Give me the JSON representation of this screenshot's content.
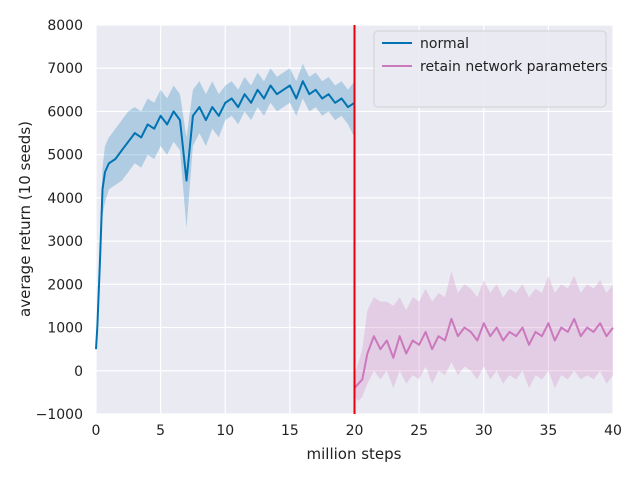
{
  "chart_data": {
    "type": "line",
    "xlabel": "million steps",
    "ylabel": "average return (10 seeds)",
    "xlim": [
      0,
      40
    ],
    "ylim": [
      -1000,
      8000
    ],
    "xticks": [
      "0",
      "5",
      "10",
      "15",
      "20",
      "25",
      "30",
      "35",
      "40"
    ],
    "yticks": [
      "−1000",
      "0",
      "1000",
      "2000",
      "3000",
      "4000",
      "5000",
      "6000",
      "7000",
      "8000"
    ],
    "grid": true,
    "legend": "top-right",
    "vline": {
      "x": 20,
      "color": "#e8000b"
    },
    "series": [
      {
        "name": "normal",
        "color": "#0173b2",
        "x": [
          0,
          0.1,
          0.3,
          0.5,
          0.7,
          1,
          1.5,
          2,
          2.5,
          3,
          3.5,
          4,
          4.5,
          5,
          5.5,
          6,
          6.5,
          7,
          7.5,
          8,
          8.5,
          9,
          9.5,
          10,
          10.5,
          11,
          11.5,
          12,
          12.5,
          13,
          13.5,
          14,
          14.5,
          15,
          15.5,
          16,
          16.5,
          17,
          17.5,
          18,
          18.5,
          19,
          19.5,
          20
        ],
        "y": [
          500,
          1000,
          2500,
          4200,
          4600,
          4800,
          4900,
          5100,
          5300,
          5500,
          5400,
          5700,
          5600,
          5900,
          5700,
          6000,
          5800,
          4400,
          5900,
          6100,
          5800,
          6100,
          5900,
          6200,
          6300,
          6100,
          6400,
          6200,
          6500,
          6300,
          6600,
          6400,
          6500,
          6600,
          6300,
          6700,
          6400,
          6500,
          6300,
          6400,
          6200,
          6300,
          6100,
          6200
        ],
        "lower": [
          500,
          900,
          2000,
          3600,
          3900,
          4200,
          4300,
          4400,
          4600,
          4800,
          4700,
          5000,
          4900,
          5200,
          5000,
          5300,
          5100,
          3300,
          5200,
          5500,
          5200,
          5600,
          5400,
          5800,
          5900,
          5700,
          6000,
          5800,
          6100,
          5900,
          6200,
          6000,
          6100,
          6200,
          5900,
          6300,
          6000,
          6100,
          5900,
          6000,
          5800,
          5900,
          5700,
          5400
        ],
        "upper": [
          500,
          1100,
          3000,
          4700,
          5200,
          5400,
          5600,
          5800,
          6000,
          6100,
          6000,
          6300,
          6200,
          6500,
          6300,
          6600,
          6400,
          5400,
          6500,
          6700,
          6400,
          6700,
          6400,
          6600,
          6700,
          6500,
          6800,
          6600,
          6900,
          6700,
          7000,
          6800,
          6900,
          7000,
          6700,
          7100,
          6800,
          6900,
          6700,
          6800,
          6600,
          6700,
          6500,
          6700
        ]
      },
      {
        "name": "retain network parameters",
        "color": "#cc78bc",
        "x": [
          20,
          20.3,
          20.6,
          21,
          21.5,
          22,
          22.5,
          23,
          23.5,
          24,
          24.5,
          25,
          25.5,
          26,
          26.5,
          27,
          27.5,
          28,
          28.5,
          29,
          29.5,
          30,
          30.5,
          31,
          31.5,
          32,
          32.5,
          33,
          33.5,
          34,
          34.5,
          35,
          35.5,
          36,
          36.5,
          37,
          37.5,
          38,
          38.5,
          39,
          39.5,
          40
        ],
        "y": [
          -400,
          -300,
          -200,
          400,
          800,
          500,
          700,
          300,
          800,
          400,
          700,
          600,
          900,
          500,
          800,
          700,
          1200,
          800,
          1000,
          900,
          700,
          1100,
          800,
          1000,
          700,
          900,
          800,
          1000,
          600,
          900,
          800,
          1100,
          700,
          1000,
          900,
          1200,
          800,
          1000,
          900,
          1100,
          800,
          1000
        ],
        "lower": [
          -600,
          -700,
          -600,
          -300,
          0,
          -200,
          0,
          -400,
          0,
          -300,
          -100,
          -200,
          100,
          -300,
          0,
          -100,
          200,
          -100,
          100,
          0,
          -200,
          100,
          -200,
          0,
          -300,
          -100,
          -200,
          0,
          -400,
          -100,
          -200,
          0,
          -400,
          -100,
          -200,
          0,
          -200,
          -100,
          -200,
          0,
          -300,
          -100
        ],
        "upper": [
          -100,
          200,
          500,
          1400,
          1700,
          1600,
          1600,
          1500,
          1700,
          1400,
          1700,
          1600,
          1900,
          1600,
          1800,
          1700,
          2300,
          1800,
          2000,
          1900,
          1700,
          2100,
          1800,
          2000,
          1700,
          1900,
          1800,
          2000,
          1700,
          1900,
          1800,
          2200,
          1800,
          2000,
          1900,
          2200,
          1800,
          2000,
          1900,
          2100,
          1800,
          2000
        ]
      }
    ]
  }
}
